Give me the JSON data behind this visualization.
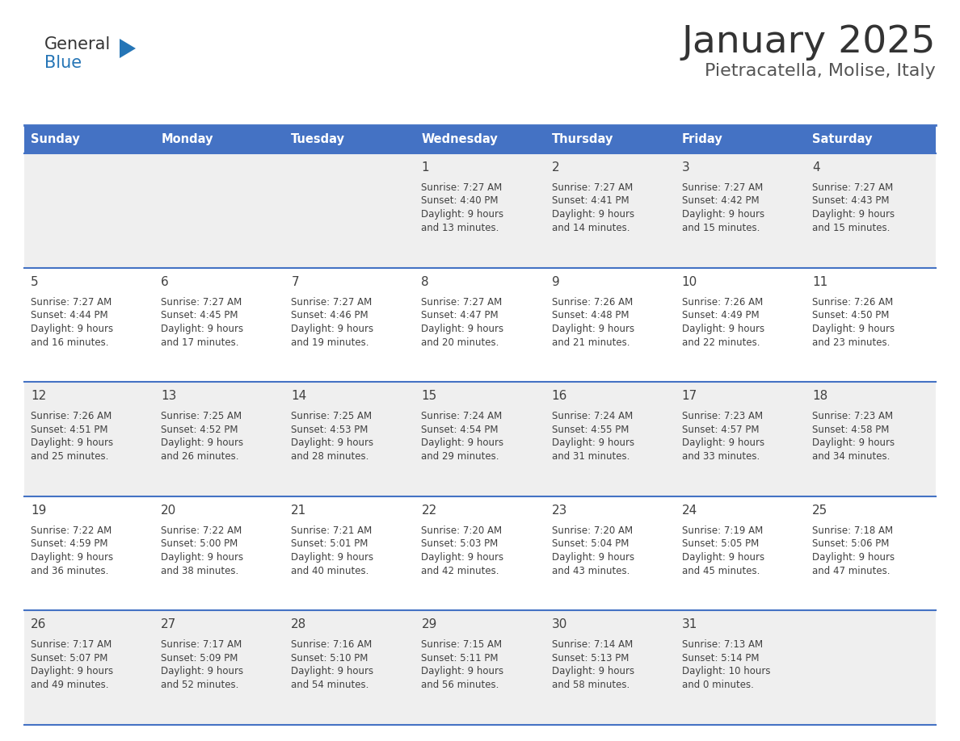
{
  "title": "January 2025",
  "subtitle": "Pietracatella, Molise, Italy",
  "header_bg": "#4472C4",
  "header_text_color": "#FFFFFF",
  "days_of_week": [
    "Sunday",
    "Monday",
    "Tuesday",
    "Wednesday",
    "Thursday",
    "Friday",
    "Saturday"
  ],
  "row_bg_odd": "#EFEFEF",
  "row_bg_even": "#FFFFFF",
  "separator_color": "#4472C4",
  "text_color": "#404040",
  "calendar_data": [
    [
      {
        "day": "",
        "sunrise": "",
        "sunset": "",
        "daylight": ""
      },
      {
        "day": "",
        "sunrise": "",
        "sunset": "",
        "daylight": ""
      },
      {
        "day": "",
        "sunrise": "",
        "sunset": "",
        "daylight": ""
      },
      {
        "day": "1",
        "sunrise": "7:27 AM",
        "sunset": "4:40 PM",
        "daylight": "9 hours\nand 13 minutes."
      },
      {
        "day": "2",
        "sunrise": "7:27 AM",
        "sunset": "4:41 PM",
        "daylight": "9 hours\nand 14 minutes."
      },
      {
        "day": "3",
        "sunrise": "7:27 AM",
        "sunset": "4:42 PM",
        "daylight": "9 hours\nand 15 minutes."
      },
      {
        "day": "4",
        "sunrise": "7:27 AM",
        "sunset": "4:43 PM",
        "daylight": "9 hours\nand 15 minutes."
      }
    ],
    [
      {
        "day": "5",
        "sunrise": "7:27 AM",
        "sunset": "4:44 PM",
        "daylight": "9 hours\nand 16 minutes."
      },
      {
        "day": "6",
        "sunrise": "7:27 AM",
        "sunset": "4:45 PM",
        "daylight": "9 hours\nand 17 minutes."
      },
      {
        "day": "7",
        "sunrise": "7:27 AM",
        "sunset": "4:46 PM",
        "daylight": "9 hours\nand 19 minutes."
      },
      {
        "day": "8",
        "sunrise": "7:27 AM",
        "sunset": "4:47 PM",
        "daylight": "9 hours\nand 20 minutes."
      },
      {
        "day": "9",
        "sunrise": "7:26 AM",
        "sunset": "4:48 PM",
        "daylight": "9 hours\nand 21 minutes."
      },
      {
        "day": "10",
        "sunrise": "7:26 AM",
        "sunset": "4:49 PM",
        "daylight": "9 hours\nand 22 minutes."
      },
      {
        "day": "11",
        "sunrise": "7:26 AM",
        "sunset": "4:50 PM",
        "daylight": "9 hours\nand 23 minutes."
      }
    ],
    [
      {
        "day": "12",
        "sunrise": "7:26 AM",
        "sunset": "4:51 PM",
        "daylight": "9 hours\nand 25 minutes."
      },
      {
        "day": "13",
        "sunrise": "7:25 AM",
        "sunset": "4:52 PM",
        "daylight": "9 hours\nand 26 minutes."
      },
      {
        "day": "14",
        "sunrise": "7:25 AM",
        "sunset": "4:53 PM",
        "daylight": "9 hours\nand 28 minutes."
      },
      {
        "day": "15",
        "sunrise": "7:24 AM",
        "sunset": "4:54 PM",
        "daylight": "9 hours\nand 29 minutes."
      },
      {
        "day": "16",
        "sunrise": "7:24 AM",
        "sunset": "4:55 PM",
        "daylight": "9 hours\nand 31 minutes."
      },
      {
        "day": "17",
        "sunrise": "7:23 AM",
        "sunset": "4:57 PM",
        "daylight": "9 hours\nand 33 minutes."
      },
      {
        "day": "18",
        "sunrise": "7:23 AM",
        "sunset": "4:58 PM",
        "daylight": "9 hours\nand 34 minutes."
      }
    ],
    [
      {
        "day": "19",
        "sunrise": "7:22 AM",
        "sunset": "4:59 PM",
        "daylight": "9 hours\nand 36 minutes."
      },
      {
        "day": "20",
        "sunrise": "7:22 AM",
        "sunset": "5:00 PM",
        "daylight": "9 hours\nand 38 minutes."
      },
      {
        "day": "21",
        "sunrise": "7:21 AM",
        "sunset": "5:01 PM",
        "daylight": "9 hours\nand 40 minutes."
      },
      {
        "day": "22",
        "sunrise": "7:20 AM",
        "sunset": "5:03 PM",
        "daylight": "9 hours\nand 42 minutes."
      },
      {
        "day": "23",
        "sunrise": "7:20 AM",
        "sunset": "5:04 PM",
        "daylight": "9 hours\nand 43 minutes."
      },
      {
        "day": "24",
        "sunrise": "7:19 AM",
        "sunset": "5:05 PM",
        "daylight": "9 hours\nand 45 minutes."
      },
      {
        "day": "25",
        "sunrise": "7:18 AM",
        "sunset": "5:06 PM",
        "daylight": "9 hours\nand 47 minutes."
      }
    ],
    [
      {
        "day": "26",
        "sunrise": "7:17 AM",
        "sunset": "5:07 PM",
        "daylight": "9 hours\nand 49 minutes."
      },
      {
        "day": "27",
        "sunrise": "7:17 AM",
        "sunset": "5:09 PM",
        "daylight": "9 hours\nand 52 minutes."
      },
      {
        "day": "28",
        "sunrise": "7:16 AM",
        "sunset": "5:10 PM",
        "daylight": "9 hours\nand 54 minutes."
      },
      {
        "day": "29",
        "sunrise": "7:15 AM",
        "sunset": "5:11 PM",
        "daylight": "9 hours\nand 56 minutes."
      },
      {
        "day": "30",
        "sunrise": "7:14 AM",
        "sunset": "5:13 PM",
        "daylight": "9 hours\nand 58 minutes."
      },
      {
        "day": "31",
        "sunrise": "7:13 AM",
        "sunset": "5:14 PM",
        "daylight": "10 hours\nand 0 minutes."
      },
      {
        "day": "",
        "sunrise": "",
        "sunset": "",
        "daylight": ""
      }
    ]
  ],
  "logo_general_color": "#333333",
  "logo_blue_color": "#2575B6",
  "logo_triangle_color": "#2575B6",
  "figwidth": 11.88,
  "figheight": 9.18,
  "dpi": 100
}
